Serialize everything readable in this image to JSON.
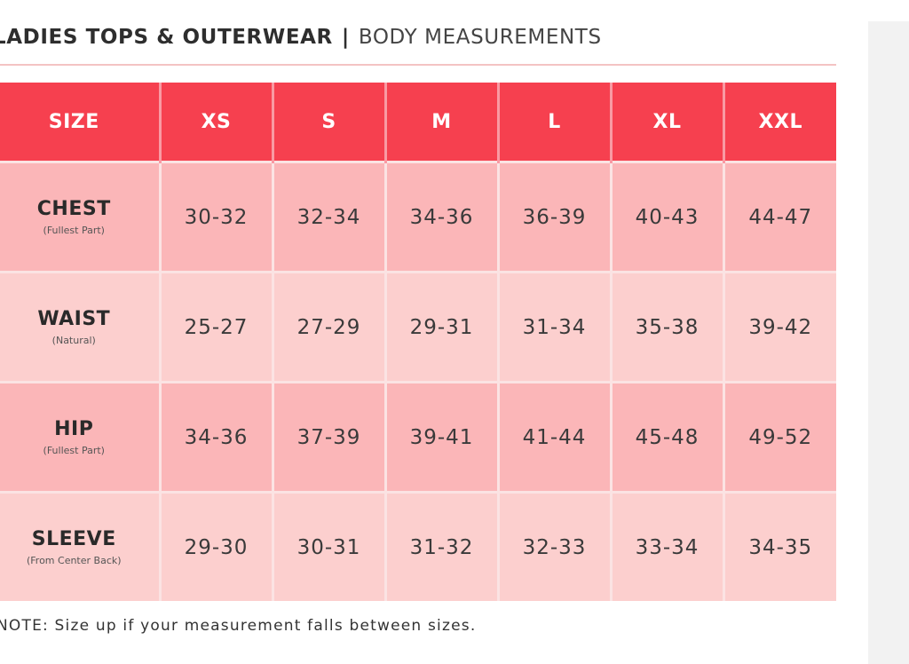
{
  "header": {
    "title_bold": "LADIES TOPS & OUTERWEAR",
    "separator": "|",
    "title_light": "BODY MEASUREMENTS"
  },
  "table": {
    "columns": [
      "SIZE",
      "XS",
      "S",
      "M",
      "L",
      "XL",
      "XXL"
    ],
    "rows": [
      {
        "label": "CHEST",
        "sublabel": "(Fullest Part)",
        "values": [
          "30-32",
          "32-34",
          "34-36",
          "36-39",
          "40-43",
          "44-47"
        ]
      },
      {
        "label": "WAIST",
        "sublabel": "(Natural)",
        "values": [
          "25-27",
          "27-29",
          "29-31",
          "31-34",
          "35-38",
          "39-42"
        ]
      },
      {
        "label": "HIP",
        "sublabel": "(Fullest Part)",
        "values": [
          "34-36",
          "37-39",
          "39-41",
          "41-44",
          "45-48",
          "49-52"
        ]
      },
      {
        "label": "SLEEVE",
        "sublabel": "(From Center Back)",
        "values": [
          "29-30",
          "30-31",
          "31-32",
          "32-33",
          "33-34",
          "34-35"
        ]
      }
    ]
  },
  "note": "NOTE: Size up if your measurement falls between sizes.",
  "colors": {
    "header_red": "#f6404f",
    "row_dark": "#fbb6b8",
    "row_light": "#fccfce"
  }
}
